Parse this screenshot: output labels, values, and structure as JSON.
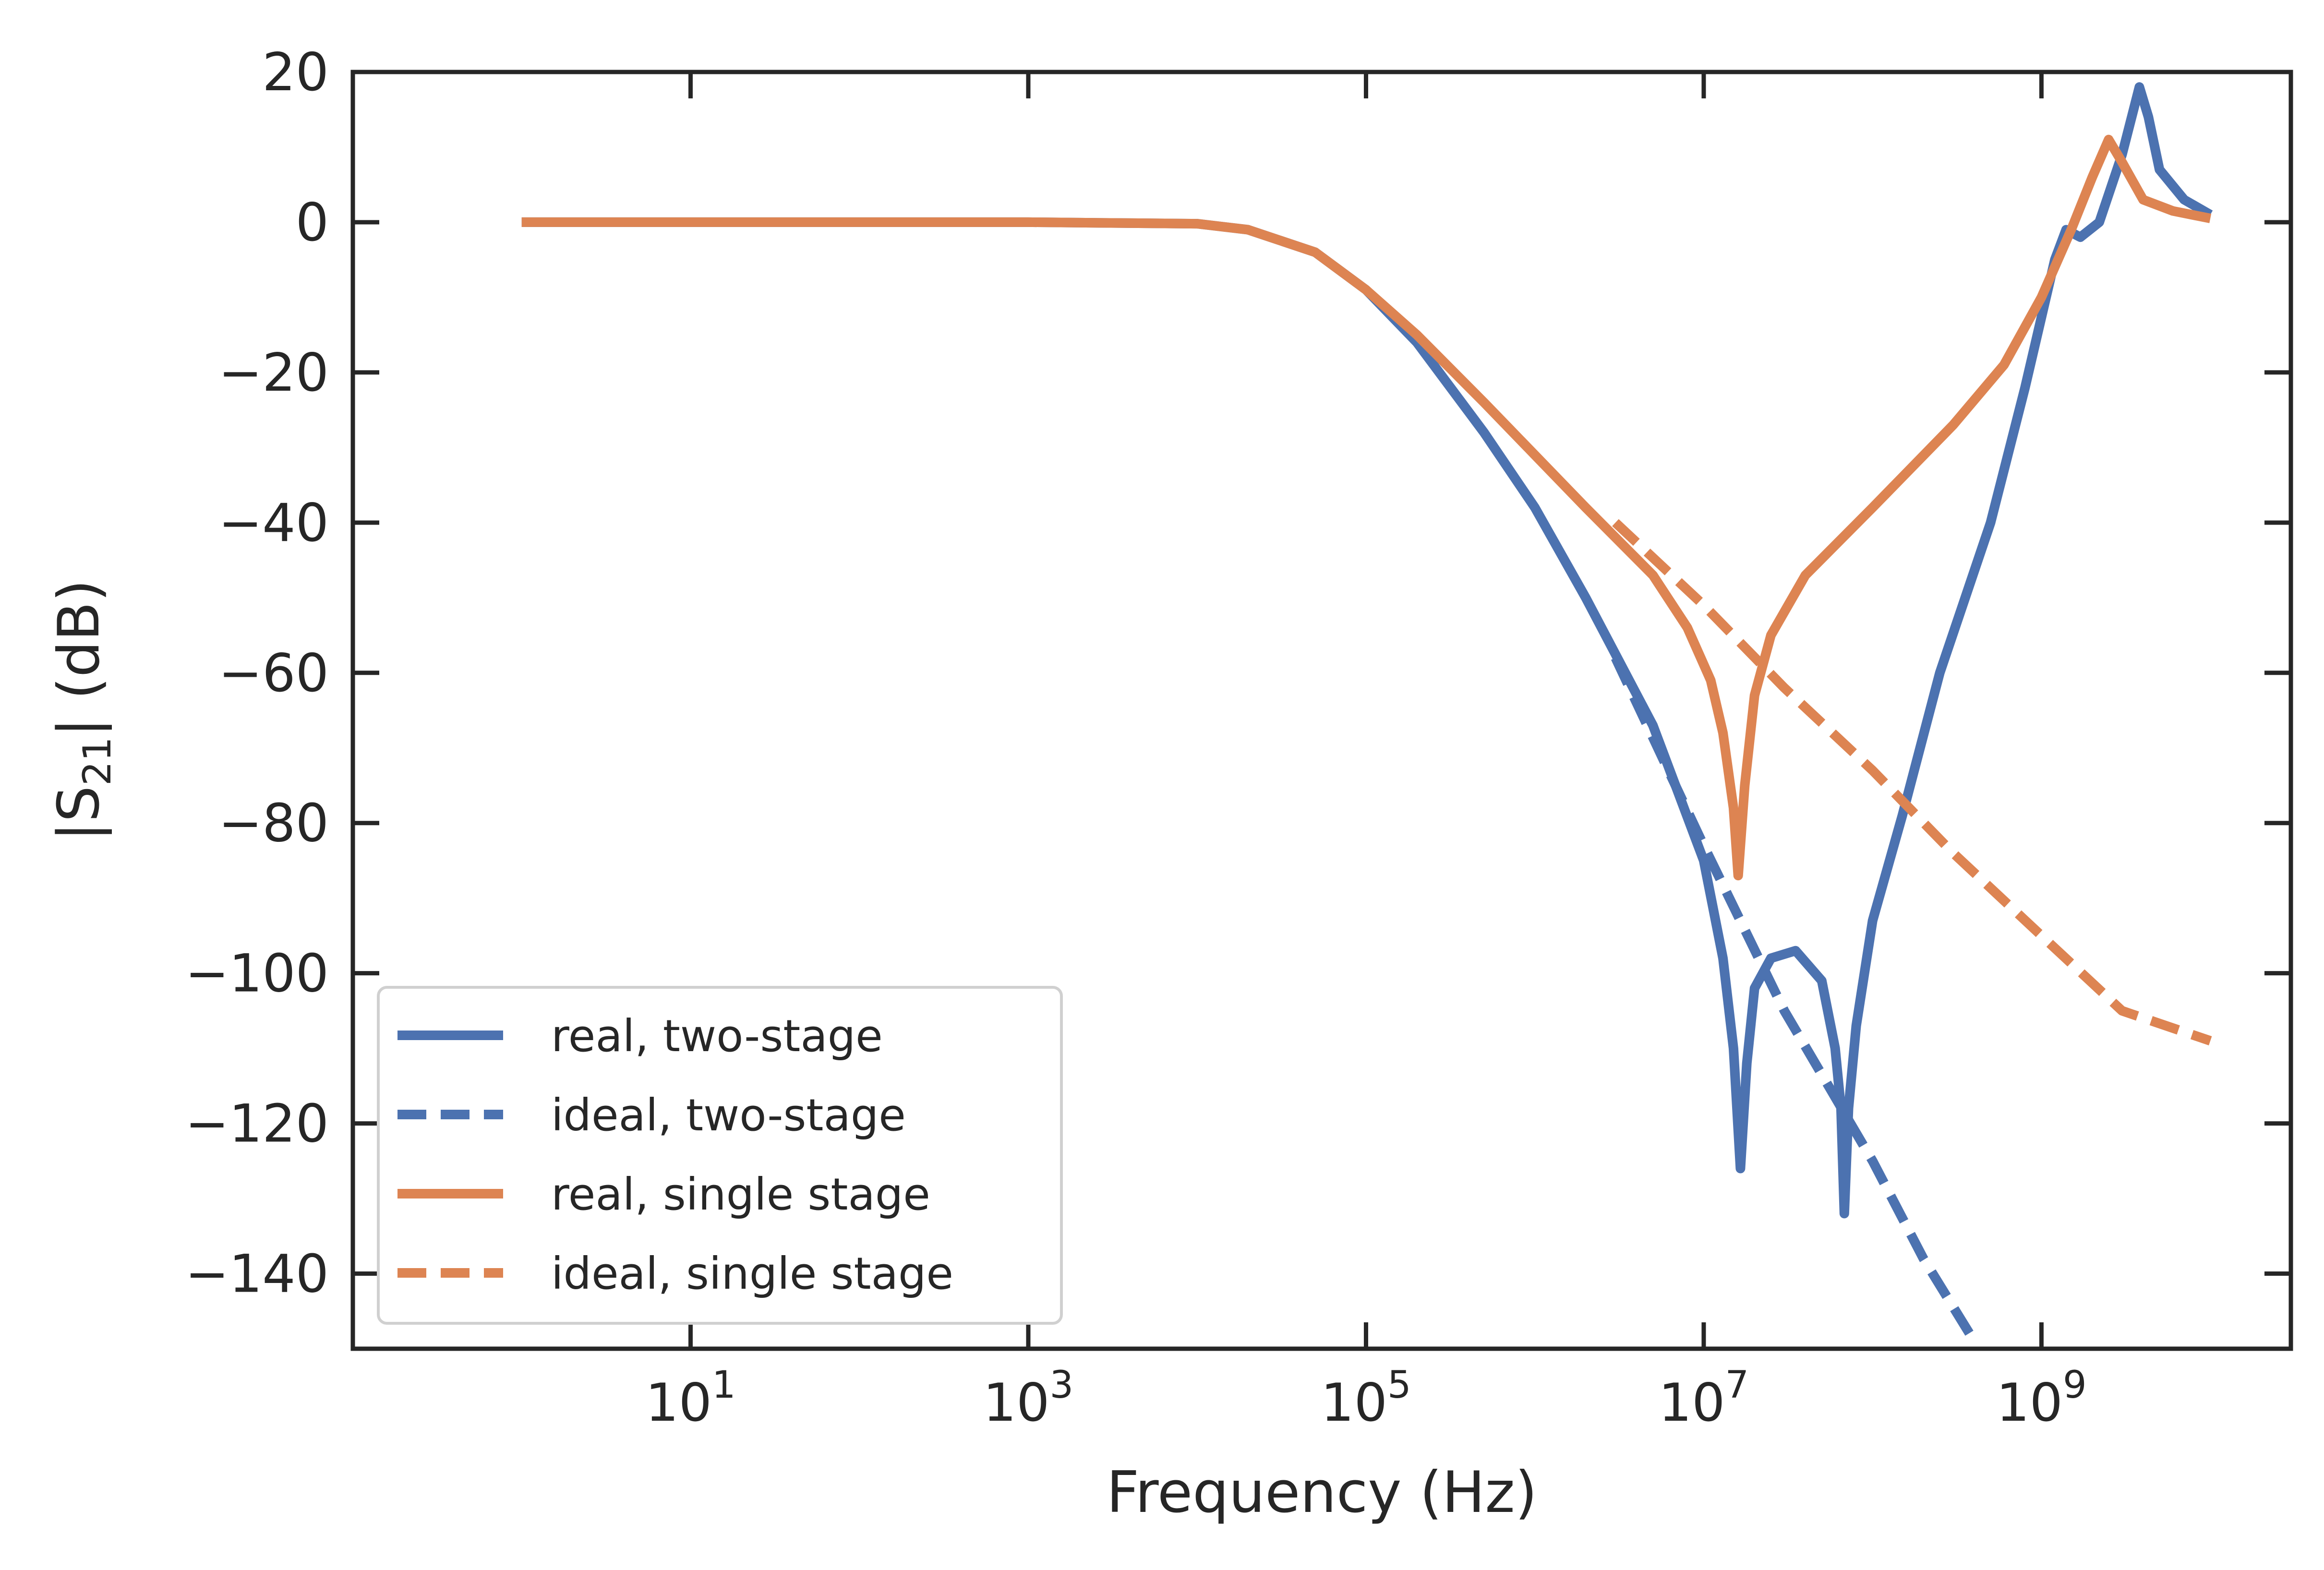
{
  "chart_data": {
    "type": "line",
    "xlabel": "Frequency (Hz)",
    "ylabel_main": "|S",
    "ylabel_sub": "21",
    "ylabel_tail": "| (dB)",
    "x_scale": "log",
    "xlim": [
      0.1,
      30000000000
    ],
    "ylim": [
      -150,
      20
    ],
    "grid": false,
    "legend_location": "lower left",
    "xtick_labels": [
      {
        "base": "10",
        "exp": "1",
        "value": 10
      },
      {
        "base": "10",
        "exp": "3",
        "value": 1000
      },
      {
        "base": "10",
        "exp": "5",
        "value": 100000
      },
      {
        "base": "10",
        "exp": "7",
        "value": 10000000
      },
      {
        "base": "10",
        "exp": "9",
        "value": 1000000000
      }
    ],
    "xtick_major_minor": [
      10,
      1000,
      100000,
      10000000,
      1000000000
    ],
    "ytick_labels": [
      "20",
      "0",
      "−20",
      "−40",
      "−60",
      "−80",
      "−100",
      "−120",
      "−140"
    ],
    "ytick_values": [
      20,
      0,
      -20,
      -40,
      -60,
      -80,
      -100,
      -120,
      -140
    ],
    "series": [
      {
        "name": "real, two-stage",
        "style": "solid",
        "color": "#4C72B0",
        "points": [
          [
            1,
            0
          ],
          [
            1000,
            0
          ],
          [
            10000,
            -0.2
          ],
          [
            20000,
            -1
          ],
          [
            50000,
            -4
          ],
          [
            100000,
            -9
          ],
          [
            200000,
            -16
          ],
          [
            500000,
            -28
          ],
          [
            1000000,
            -38
          ],
          [
            2000000,
            -50
          ],
          [
            5000000,
            -67
          ],
          [
            10000000,
            -85
          ],
          [
            13000000,
            -98
          ],
          [
            15000000,
            -110
          ],
          [
            16500000,
            -126
          ],
          [
            18000000,
            -112
          ],
          [
            20000000,
            -102
          ],
          [
            25000000,
            -98
          ],
          [
            35000000,
            -97
          ],
          [
            50000000,
            -101
          ],
          [
            60000000,
            -110
          ],
          [
            65000000,
            -118
          ],
          [
            68000000,
            -132
          ],
          [
            72000000,
            -118
          ],
          [
            80000000,
            -107
          ],
          [
            100000000,
            -93
          ],
          [
            150000000,
            -79
          ],
          [
            250000000,
            -60
          ],
          [
            500000000,
            -40
          ],
          [
            800000000,
            -22
          ],
          [
            1200000000,
            -5
          ],
          [
            1400000000,
            -1
          ],
          [
            1700000000,
            -2
          ],
          [
            2200000000,
            0
          ],
          [
            3000000000,
            9
          ],
          [
            3800000000,
            18
          ],
          [
            4300000000,
            14
          ],
          [
            5000000000,
            7
          ],
          [
            7000000000,
            3
          ],
          [
            10000000000,
            1
          ]
        ]
      },
      {
        "name": "ideal, two-stage",
        "style": "dashed",
        "color": "#4C72B0",
        "points": [
          [
            3000000,
            -58
          ],
          [
            10000000,
            -83
          ],
          [
            30000000,
            -105
          ],
          [
            100000000,
            -125
          ],
          [
            200000000,
            -138
          ],
          [
            400000000,
            -149
          ]
        ]
      },
      {
        "name": "real, single stage",
        "style": "solid",
        "color": "#DD8452",
        "points": [
          [
            1,
            0
          ],
          [
            1000,
            0
          ],
          [
            10000,
            -0.2
          ],
          [
            20000,
            -1
          ],
          [
            50000,
            -4
          ],
          [
            100000,
            -9
          ],
          [
            200000,
            -15
          ],
          [
            500000,
            -24
          ],
          [
            1000000,
            -31
          ],
          [
            2000000,
            -38
          ],
          [
            5000000,
            -47
          ],
          [
            8000000,
            -54
          ],
          [
            11000000,
            -61
          ],
          [
            13000000,
            -68
          ],
          [
            15000000,
            -78
          ],
          [
            16000000,
            -87
          ],
          [
            17500000,
            -75
          ],
          [
            20000000,
            -63
          ],
          [
            25000000,
            -55
          ],
          [
            40000000,
            -47
          ],
          [
            100000000,
            -38
          ],
          [
            300000000,
            -27
          ],
          [
            600000000,
            -19
          ],
          [
            1000000000,
            -10
          ],
          [
            1500000000,
            -1
          ],
          [
            2000000000,
            6
          ],
          [
            2500000000,
            11
          ],
          [
            3000000000,
            8
          ],
          [
            4000000000,
            3
          ],
          [
            6000000000,
            1.5
          ],
          [
            10000000000,
            0.5
          ]
        ]
      },
      {
        "name": "ideal, single stage",
        "style": "dashed",
        "color": "#DD8452",
        "points": [
          [
            3000000,
            -40
          ],
          [
            10000000,
            -51
          ],
          [
            30000000,
            -62
          ],
          [
            100000000,
            -73
          ],
          [
            300000000,
            -84
          ],
          [
            1000000000,
            -95
          ],
          [
            3000000000,
            -105
          ],
          [
            10000000000,
            -109
          ]
        ]
      }
    ]
  }
}
